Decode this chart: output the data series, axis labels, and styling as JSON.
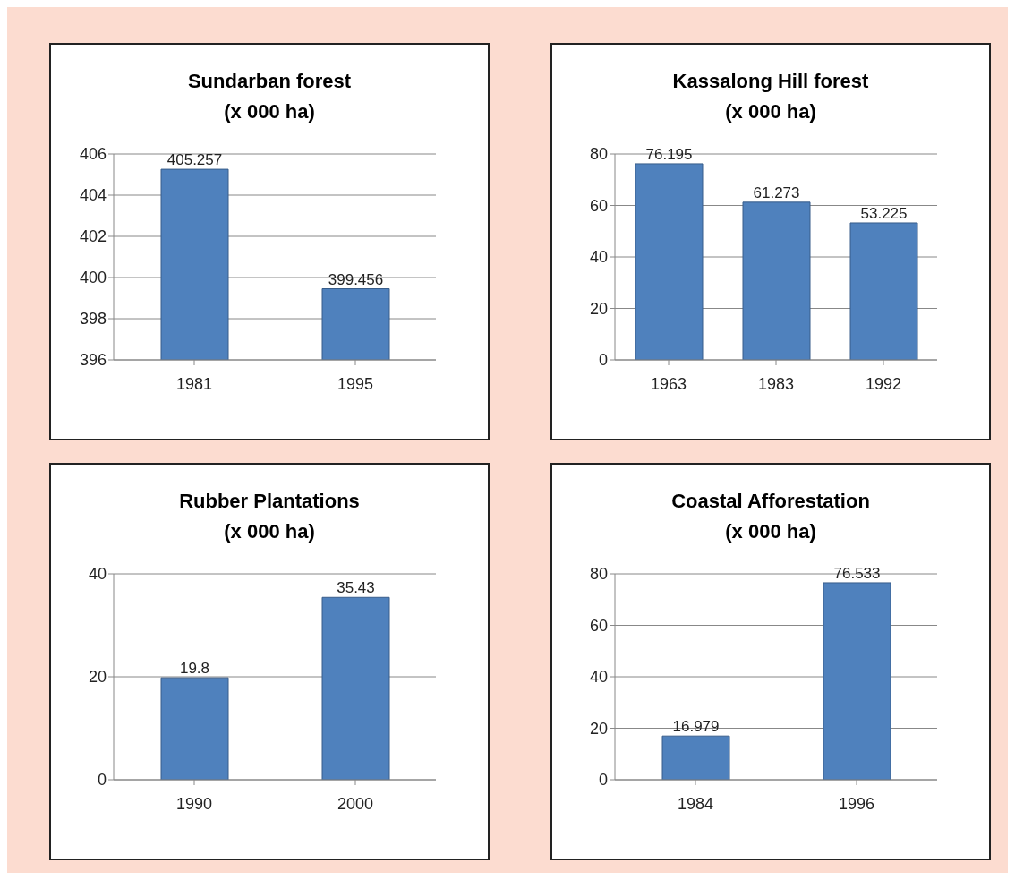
{
  "chart_data": [
    {
      "type": "bar",
      "title": "Sundarban forest",
      "subtitle": "(x 000 ha)",
      "categories": [
        "1981",
        "1995"
      ],
      "values": [
        405.257,
        399.456
      ],
      "color": "#4f81bd",
      "ylim": [
        396,
        406
      ],
      "yticks": [
        396,
        398,
        400,
        402,
        404,
        406
      ],
      "grid": "y",
      "data_labels": true
    },
    {
      "type": "bar",
      "title": "Kassalong Hill forest",
      "subtitle": "(x 000 ha)",
      "categories": [
        "1963",
        "1983",
        "1992"
      ],
      "values": [
        76.195,
        61.273,
        53.225
      ],
      "color": "#4f81bd",
      "ylim": [
        0,
        80
      ],
      "yticks": [
        0,
        20,
        40,
        60,
        80
      ],
      "grid": "y",
      "data_labels": true
    },
    {
      "type": "bar",
      "title": "Rubber Plantations",
      "subtitle": "(x 000 ha)",
      "categories": [
        "1990",
        "2000"
      ],
      "values": [
        19.8,
        35.43
      ],
      "color": "#4f81bd",
      "ylim": [
        0,
        40
      ],
      "yticks": [
        0,
        20,
        40
      ],
      "grid": "y",
      "data_labels": true
    },
    {
      "type": "bar",
      "title": "Coastal Afforestation",
      "subtitle": "(x 000 ha)",
      "categories": [
        "1984",
        "1996"
      ],
      "values": [
        16.979,
        76.533
      ],
      "color": "#4f81bd",
      "ylim": [
        0,
        80
      ],
      "yticks": [
        0,
        20,
        40,
        60,
        80
      ],
      "grid": "y",
      "data_labels": true
    }
  ]
}
